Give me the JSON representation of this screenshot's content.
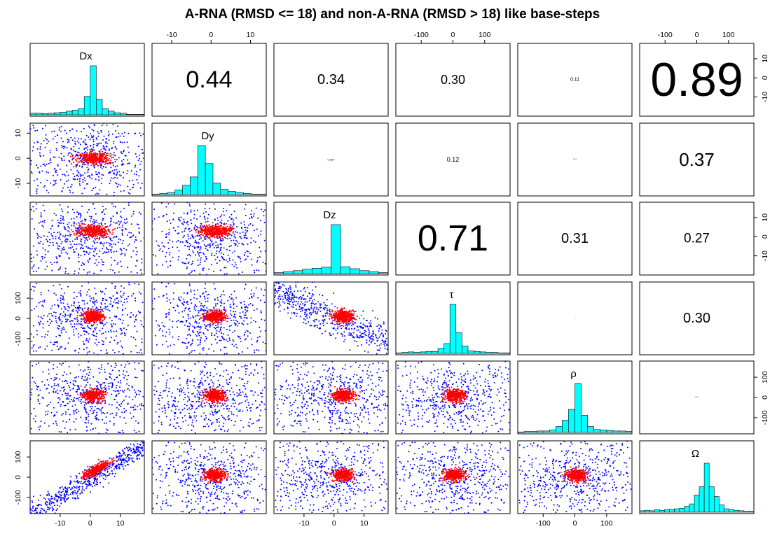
{
  "chart_data": {
    "type": "scatter-matrix",
    "title": "A-RNA (RMSD <= 18) and non-A-RNA (RMSD > 18) like base-steps",
    "variables": [
      "Dx",
      "Dy",
      "Dz",
      "τ",
      "ρ",
      "Ω"
    ],
    "axis_ticks": [
      {
        "variable": "Dx",
        "ticks": [
          "-10",
          "0",
          "10"
        ]
      },
      {
        "variable": "Dy",
        "ticks": [
          "-10",
          "0",
          "10"
        ]
      },
      {
        "variable": "Dz",
        "ticks": [
          "-10",
          "0",
          "10"
        ]
      },
      {
        "variable": "τ",
        "ticks": [
          "-100",
          "0",
          "100"
        ]
      },
      {
        "variable": "ρ",
        "ticks": [
          "-100",
          "0",
          "100"
        ]
      },
      {
        "variable": "Ω",
        "ticks": [
          "-100",
          "0",
          "100"
        ]
      }
    ],
    "series": [
      {
        "name": "A-RNA (RMSD <= 18)",
        "color": "#ff0000"
      },
      {
        "name": "non-A-RNA (RMSD > 18)",
        "color": "#0000ff"
      }
    ],
    "correlations": [
      {
        "row": "Dx",
        "col": "Dy",
        "value": "0.44",
        "size": 34
      },
      {
        "row": "Dx",
        "col": "Dz",
        "value": "0.34",
        "size": 20
      },
      {
        "row": "Dx",
        "col": "τ",
        "value": "0.30",
        "size": 18
      },
      {
        "row": "Dx",
        "col": "ρ",
        "value": "0.11",
        "size": 7
      },
      {
        "row": "Dx",
        "col": "Ω",
        "value": "0.89",
        "size": 68
      },
      {
        "row": "Dy",
        "col": "Dz",
        "value": "0.037",
        "size": 4
      },
      {
        "row": "Dy",
        "col": "τ",
        "value": "0.12",
        "size": 9
      },
      {
        "row": "Dy",
        "col": "ρ",
        "value": "0.004",
        "size": 2
      },
      {
        "row": "Dy",
        "col": "Ω",
        "value": "0.37",
        "size": 26
      },
      {
        "row": "Dz",
        "col": "τ",
        "value": "0.71",
        "size": 52
      },
      {
        "row": "Dz",
        "col": "ρ",
        "value": "0.31",
        "size": 20
      },
      {
        "row": "Dz",
        "col": "Ω",
        "value": "0.27",
        "size": 19
      },
      {
        "row": "τ",
        "col": "ρ",
        "value": "0.002",
        "size": 1
      },
      {
        "row": "τ",
        "col": "Ω",
        "value": "0.30",
        "size": 20
      },
      {
        "row": "ρ",
        "col": "Ω",
        "value": "0.005",
        "size": 2
      }
    ],
    "histograms": [
      {
        "variable": "Dx",
        "counts": [
          3,
          3,
          2,
          3,
          4,
          5,
          7,
          9,
          12,
          36,
          96,
          30,
          12,
          7,
          4,
          3,
          1,
          1,
          1
        ]
      },
      {
        "variable": "Dy",
        "counts": [
          1,
          2,
          4,
          9,
          18,
          34,
          95,
          60,
          22,
          10,
          6,
          4,
          2,
          1,
          1
        ]
      },
      {
        "variable": "Dz",
        "counts": [
          2,
          4,
          6,
          9,
          11,
          13,
          100,
          14,
          10,
          6,
          4,
          2
        ]
      },
      {
        "variable": "τ",
        "counts": [
          1,
          2,
          3,
          2,
          3,
          4,
          4,
          10,
          20,
          100,
          42,
          15,
          5,
          4,
          3,
          2,
          2,
          1,
          1
        ]
      },
      {
        "variable": "ρ",
        "counts": [
          1,
          2,
          2,
          3,
          3,
          5,
          12,
          25,
          47,
          100,
          35,
          12,
          6,
          5,
          4,
          3,
          3,
          2
        ]
      },
      {
        "variable": "Ω",
        "counts": [
          3,
          4,
          3,
          5,
          4,
          5,
          6,
          7,
          8,
          12,
          17,
          35,
          52,
          100,
          52,
          32,
          15,
          7,
          5,
          4,
          3,
          2,
          2
        ]
      }
    ]
  }
}
